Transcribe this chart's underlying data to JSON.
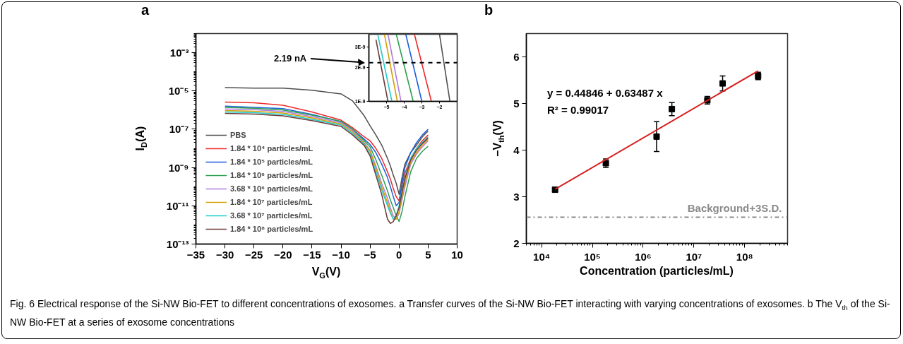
{
  "chart_data": [
    {
      "type": "line",
      "title": "a",
      "xlabel": "V$_{G}$(V)",
      "ylabel": "I$_{D}$(A)",
      "log": "y",
      "legend": "bottom left",
      "annotations": [
        "Fig. 6 Electrical response of the Si-NW Bio-FET to different concentrations of exosomes. a Transfer curves of the Si-NW Bio-FET interacting with varying concentrations of exosomes. b The V$_{th}$ of the Si-NW Bio-FET at a series of exosome concentrations"
      ],
      "xlim": [
        -35,
        10
      ],
      "xticks": [
        {
          "value": -35,
          "label": "−35"
        },
        {
          "value": -30,
          "label": "−30"
        },
        {
          "value": -25,
          "label": "−25"
        },
        {
          "value": -20,
          "label": "−20"
        },
        {
          "value": -15,
          "label": "−15"
        },
        {
          "value": -10,
          "label": "−10"
        },
        {
          "value": -5,
          "label": "−5"
        },
        0,
        5,
        10
      ],
      "ylim": [
        1e-13,
        0.01
      ],
      "yticks": [
        {
          "value": 1e-13,
          "label": "10⁻¹³"
        },
        {
          "value": 1e-11,
          "label": "10⁻¹¹"
        },
        {
          "value": 1e-09,
          "label": "10⁻⁹"
        },
        {
          "value": 1e-07,
          "label": "10⁻⁷"
        },
        {
          "value": 1e-05,
          "label": "10⁻⁵"
        },
        {
          "value": 0.001,
          "label": "10⁻³"
        }
      ],
      "x": [
        -30,
        -25,
        -20,
        -15,
        -10,
        -8,
        -6,
        -5,
        -4,
        -3,
        -2,
        -1.5,
        -1,
        -0.5,
        0,
        0.5,
        1,
        2,
        3,
        4,
        5
      ],
      "series": [
        {
          "name": "PBS",
          "color": "#4d4d4d",
          "values": [
            1.5e-05,
            1.4e-05,
            1.4e-05,
            1.1e-05,
            7e-06,
            3e-06,
            5e-07,
            1.5e-07,
            5e-08,
            1.5e-08,
            3e-09,
            1.2e-09,
            4e-10,
            1.5e-10,
            4e-11,
            3e-10,
            1.5e-09,
            6e-09,
            1.5e-08,
            4e-08,
            8e-08
          ]
        },
        {
          "name": "1.84 * 10⁴ particles/mL",
          "color": "#ee2a2a",
          "values": [
            2.6e-06,
            2.4e-06,
            1.8e-06,
            8e-07,
            3e-07,
            1.2e-07,
            4e-08,
            2.5e-08,
            1e-08,
            3e-09,
            6e-10,
            2.5e-10,
            8e-11,
            3e-11,
            1.8e-11,
            1e-10,
            5e-10,
            3e-09,
            1e-08,
            2.5e-08,
            5e-08
          ]
        },
        {
          "name": "1.84 * 10⁵ particles/mL",
          "color": "#1a5fd8",
          "values": [
            1.6e-06,
            1.4e-06,
            1.2e-06,
            6e-07,
            2.5e-07,
            1e-07,
            3e-08,
            1.6e-08,
            6e-09,
            1.5e-09,
            3e-10,
            1e-10,
            3e-11,
            1e-11,
            1.5e-11,
            1.5e-10,
            1e-09,
            6e-09,
            2e-08,
            5e-08,
            1e-07
          ]
        },
        {
          "name": "1.84 * 10⁶ particles/mL",
          "color": "#2aa050",
          "values": [
            1.4e-06,
            1.25e-06,
            1e-06,
            5.5e-07,
            2.6e-07,
            1e-07,
            2.5e-08,
            1.2e-08,
            2.5e-09,
            4e-10,
            6e-11,
            2e-11,
            8e-12,
            3e-12,
            1.5e-12,
            5e-12,
            3e-11,
            6e-10,
            3e-09,
            7e-09,
            1.3e-08
          ]
        },
        {
          "name": "3.68 * 10⁶ particles/mL",
          "color": "#b07ce0",
          "values": [
            1.15e-06,
            1.05e-06,
            8.5e-07,
            4.6e-07,
            2.2e-07,
            8.5e-08,
            2e-08,
            8e-09,
            1.2e-09,
            1.5e-10,
            2.5e-11,
            8e-12,
            3e-12,
            2e-12,
            4e-12,
            2e-11,
            1e-10,
            1.5e-09,
            5e-09,
            1.2e-08,
            2.5e-08
          ]
        },
        {
          "name": "1.84 * 10⁷ particles/mL",
          "color": "#d4a000",
          "values": [
            9.5e-07,
            8.7e-07,
            7e-07,
            3.9e-07,
            1.9e-07,
            7.2e-08,
            1.8e-08,
            7e-09,
            9e-10,
            1e-10,
            1.5e-11,
            5e-12,
            2e-12,
            2e-12,
            5e-12,
            3e-11,
            1.5e-10,
            2e-09,
            6e-09,
            1.5e-08,
            3e-08
          ]
        },
        {
          "name": "3.68 * 10⁷ particles/mL",
          "color": "#22cccc",
          "values": [
            8e-07,
            7.3e-07,
            5.9e-07,
            3.3e-07,
            1.65e-07,
            6e-08,
            1.6e-08,
            5e-09,
            6e-10,
            7e-11,
            1e-11,
            4e-12,
            2e-12,
            3e-12,
            1e-11,
            6e-11,
            3e-10,
            3e-09,
            1e-08,
            2e-08,
            4e-08
          ]
        },
        {
          "name": "1.84 * 10⁸ particles/mL",
          "color": "#6b3a3a",
          "values": [
            6.8e-07,
            6.2e-07,
            5e-07,
            2.8e-07,
            1.4e-07,
            5e-08,
            1.4e-08,
            4e-09,
            4e-10,
            4e-11,
            2e-12,
            1.2e-12,
            1.5e-12,
            3e-12,
            8e-12,
            5e-11,
            2.5e-10,
            2.5e-09,
            8e-09,
            1.8e-08,
            3.5e-08
          ]
        }
      ]
    },
    {
      "type": "line",
      "log": "y",
      "xlim": [
        -6,
        -1
      ],
      "xticks": [
        {
          "value": -5,
          "label": "−5"
        },
        {
          "value": -4,
          "label": "−4"
        },
        {
          "value": -3,
          "label": "−3"
        },
        {
          "value": -2,
          "label": "−2"
        }
      ],
      "ylim": [
        1e-09,
        3.9e-09
      ],
      "yticks": [
        {
          "value": 1e-09,
          "label": "1E-9"
        },
        {
          "value": 2e-09,
          "label": "2E-9"
        },
        {
          "value": 3e-09,
          "label": "3E-9"
        }
      ],
      "ref_lines": [
        {
          "axis": "y",
          "value": 2.19e-09,
          "label": "2.19 nA",
          "color": "#000000",
          "line_style": "dashed"
        }
      ],
      "series": [
        {
          "color": "#4d4d4d",
          "x": [
            -2.0,
            -1.41
          ],
          "values": [
            3.9e-09,
            1e-09
          ]
        },
        {
          "color": "#ee2a2a",
          "x": [
            -3.42,
            -2.46
          ],
          "values": [
            3.9e-09,
            1e-09
          ]
        },
        {
          "color": "#1a5fd8",
          "x": [
            -3.91,
            -3.0
          ],
          "values": [
            3.9e-09,
            1e-09
          ]
        },
        {
          "color": "#2aa050",
          "x": [
            -4.45,
            -3.49
          ],
          "values": [
            3.9e-09,
            1e-09
          ]
        },
        {
          "color": "#b07ce0",
          "x": [
            -4.92,
            -4.18
          ],
          "values": [
            3.9e-09,
            1e-09
          ]
        },
        {
          "color": "#d4a000",
          "x": [
            -5.12,
            -4.39
          ],
          "values": [
            3.9e-09,
            1e-09
          ]
        },
        {
          "color": "#22cccc",
          "x": [
            -5.5,
            -4.7
          ],
          "values": [
            3.9e-09,
            1e-09
          ]
        },
        {
          "color": "#6b3a3a",
          "x": [
            -5.6,
            -4.92
          ],
          "values": [
            3.5e-09,
            1e-09
          ]
        }
      ]
    },
    {
      "type": "scatter",
      "title": "b",
      "xlabel": "Concentration (particles/mL)",
      "ylabel": "−V$_{th}$(V)",
      "log": "x",
      "annotations": [
        "y = 0.44846 + 0.63487 x",
        "R² = 0.99017"
      ],
      "xlim": [
        5000,
        700000000
      ],
      "xticks": [
        {
          "value": 10000,
          "label": "10⁴"
        },
        {
          "value": 100000,
          "label": "10⁵"
        },
        {
          "value": 1000000,
          "label": "10⁶"
        },
        {
          "value": 10000000,
          "label": "10⁷"
        },
        {
          "value": 100000000,
          "label": "10⁸"
        }
      ],
      "ylim": [
        2,
        6.5
      ],
      "yticks": [
        2,
        3,
        4,
        5,
        6
      ],
      "x": [
        18400,
        184000,
        1840000,
        3680000,
        18400000,
        36800000,
        184000000
      ],
      "ref_lines": [
        {
          "axis": "y",
          "value": 2.56,
          "label": "Background+3S.D.",
          "color": "#8a8a8a",
          "line_style": "dashdot"
        }
      ],
      "series": [
        {
          "color": "#000000",
          "marker": "square",
          "values": [
            3.15,
            3.72,
            4.29,
            4.88,
            5.07,
            5.43,
            5.59
          ],
          "errors": [
            0.04,
            0.09,
            0.32,
            0.14,
            0.08,
            0.16,
            0.08
          ]
        },
        {
          "type": "line",
          "color": "#d62020",
          "x": [
            18400,
            184000000
          ],
          "values": [
            3.16,
            5.7
          ]
        }
      ]
    }
  ]
}
